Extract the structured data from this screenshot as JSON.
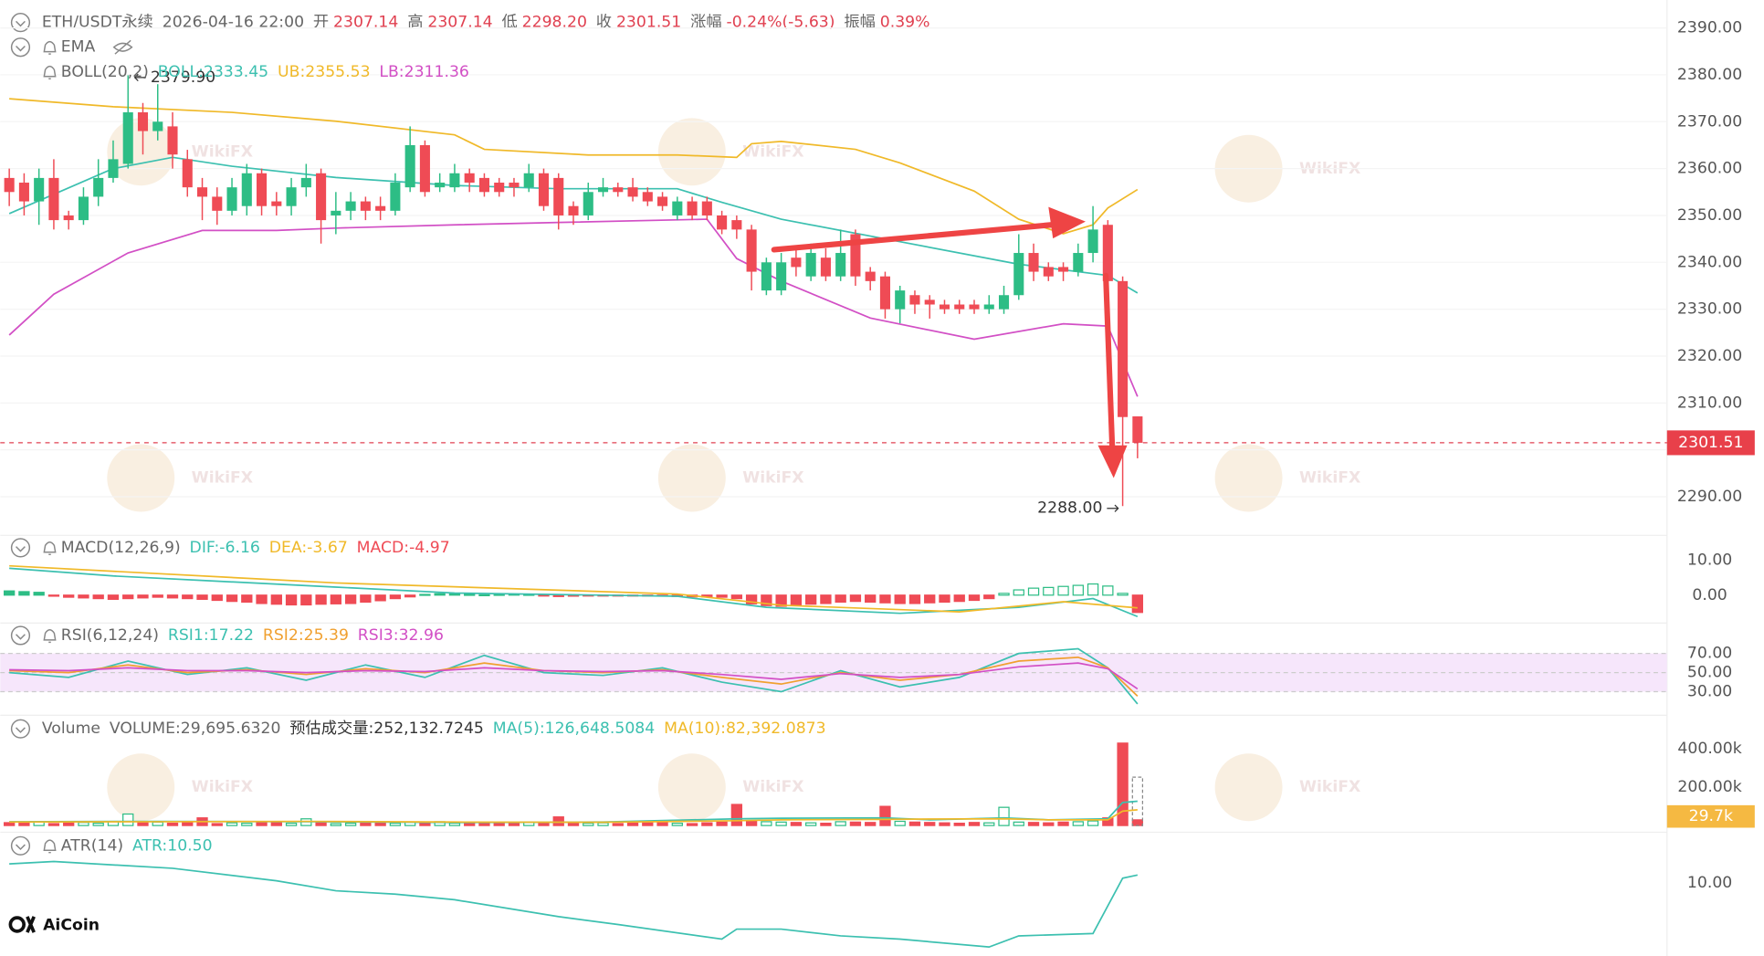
{
  "header": {
    "symbol": "ETH/USDT永续",
    "time": "2026-04-16 22:00",
    "fields": [
      {
        "label": "开",
        "value": "2307.14"
      },
      {
        "label": "高",
        "value": "2307.14"
      },
      {
        "label": "低",
        "value": "2298.20"
      },
      {
        "label": "收",
        "value": "2301.51"
      },
      {
        "label": "涨幅",
        "value": "-0.24%(-5.63)"
      },
      {
        "label": "振幅",
        "value": "0.39%"
      }
    ]
  },
  "watermark": "WikiFX",
  "logo": "AiCoin",
  "chart_data": [
    {
      "type": "candlestick",
      "indicators": [
        "EMA",
        "BOLL(20,2)"
      ],
      "up_color": "#2dbd85",
      "down_color": "#ef4b55",
      "open": [
        2358,
        2357,
        2353,
        2358,
        2350,
        2349,
        2354,
        2358,
        2361,
        2372,
        2368,
        2369,
        2362,
        2356,
        2354,
        2351,
        2352,
        2359,
        2353,
        2352,
        2356,
        2359,
        2350,
        2351,
        2353,
        2352,
        2351,
        2356,
        2365,
        2356,
        2356,
        2359,
        2358,
        2357,
        2357,
        2356,
        2359,
        2358,
        2352,
        2350,
        2355,
        2356,
        2356,
        2355,
        2354,
        2350,
        2353,
        2353,
        2350,
        2349,
        2347,
        2334,
        2334,
        2341,
        2337,
        2341,
        2337,
        2346,
        2338,
        2337,
        2330,
        2333,
        2332,
        2331,
        2331,
        2331,
        2330,
        2330,
        2333,
        2342,
        2339,
        2339,
        2338,
        2342,
        2348,
        2336,
        2307.14
      ],
      "high": [
        2360,
        2359,
        2360,
        2362,
        2351,
        2356,
        2362,
        2366,
        2379.9,
        2374,
        2378,
        2372,
        2364,
        2358,
        2356,
        2358,
        2361,
        2360,
        2355,
        2358,
        2361,
        2360,
        2355,
        2355,
        2354,
        2354,
        2359,
        2369,
        2366,
        2359,
        2361,
        2360,
        2359,
        2358,
        2358,
        2361,
        2360,
        2359,
        2353,
        2357,
        2358,
        2357,
        2358,
        2356,
        2355,
        2354,
        2354,
        2354,
        2351,
        2350,
        2348,
        2341,
        2342,
        2343,
        2344,
        2343,
        2347,
        2347,
        2339,
        2338,
        2335,
        2334,
        2333,
        2332,
        2332,
        2332,
        2333,
        2335,
        2346,
        2344,
        2340,
        2340,
        2344,
        2352,
        2349,
        2337,
        2307.14
      ],
      "low": [
        2352,
        2350,
        2348,
        2347,
        2347,
        2348,
        2352,
        2357,
        2360,
        2363,
        2366,
        2360,
        2354,
        2349,
        2348,
        2350,
        2350,
        2350,
        2350,
        2350,
        2354,
        2344,
        2346,
        2349,
        2349,
        2349,
        2350,
        2355,
        2354,
        2355,
        2355,
        2355,
        2354,
        2354,
        2354,
        2355,
        2351,
        2347,
        2348,
        2349,
        2354,
        2354,
        2353,
        2352,
        2351,
        2349,
        2349,
        2349,
        2346,
        2345,
        2334,
        2333,
        2333,
        2337,
        2336,
        2336,
        2336,
        2335,
        2334,
        2328,
        2327,
        2329,
        2328,
        2329,
        2329,
        2329,
        2329,
        2329,
        2332,
        2336,
        2336,
        2336,
        2337,
        2340,
        2334,
        2288,
        2298.2
      ],
      "close": [
        2355,
        2353,
        2358,
        2349,
        2349,
        2354,
        2358,
        2362,
        2372,
        2368,
        2370,
        2363,
        2356,
        2354,
        2351,
        2356,
        2359,
        2352,
        2352,
        2356,
        2358,
        2349,
        2351,
        2353,
        2351,
        2351,
        2357,
        2365,
        2355,
        2357,
        2359,
        2357,
        2355,
        2355,
        2356,
        2359,
        2352,
        2350,
        2350,
        2355,
        2356,
        2355,
        2354,
        2353,
        2352,
        2353,
        2350,
        2350,
        2347,
        2347,
        2338,
        2340,
        2340,
        2339,
        2342,
        2337,
        2342,
        2337,
        2336,
        2330,
        2334,
        2331,
        2331,
        2330,
        2330,
        2330,
        2331,
        2333,
        2342,
        2338,
        2337,
        2338,
        2342,
        2347,
        2336,
        2307,
        2301.51
      ],
      "ylim": [
        2282,
        2395
      ],
      "yticks": [
        {
          "value": 2290,
          "label": "2290.00"
        },
        {
          "value": 2300,
          "label": "2300.00"
        },
        {
          "value": 2310,
          "label": "2310.00"
        },
        {
          "value": 2320,
          "label": "2320.00"
        },
        {
          "value": 2330,
          "label": "2330.00"
        },
        {
          "value": 2340,
          "label": "2340.00"
        },
        {
          "value": 2350,
          "label": "2350.00"
        },
        {
          "value": 2360,
          "label": "2360.00"
        },
        {
          "value": 2370,
          "label": "2370.00"
        },
        {
          "value": 2380,
          "label": "2380.00"
        },
        {
          "value": 2390,
          "label": "2390.00"
        }
      ],
      "series": [
        {
          "name": "BOLL:2333.45",
          "color": "#3cc0b0",
          "x": [
            0,
            7,
            11,
            15,
            22,
            30,
            37,
            45,
            48,
            52,
            60,
            68,
            74,
            76
          ],
          "values": [
            2350.4,
            2360,
            2362.4,
            2360.5,
            2358.1,
            2356.4,
            2355.7,
            2355.7,
            2352.8,
            2349.2,
            2344.4,
            2339.6,
            2337.2,
            2333.45
          ]
        },
        {
          "name": "UB:2355.53",
          "color": "#f0b929",
          "x": [
            0,
            7,
            15,
            22,
            30,
            32,
            39,
            45,
            49,
            50,
            52,
            57,
            60,
            65,
            68,
            71,
            73,
            74,
            76
          ],
          "values": [
            2374.9,
            2373.2,
            2372,
            2370.1,
            2367.2,
            2364.1,
            2362.9,
            2362.9,
            2362.4,
            2365.3,
            2365.8,
            2364.1,
            2361.2,
            2355.2,
            2349.2,
            2346.1,
            2348,
            2351.6,
            2355.53
          ]
        },
        {
          "name": "LB:2311.36",
          "color": "#d24fc5",
          "x": [
            0,
            3,
            8,
            13,
            18,
            22,
            30,
            37,
            47,
            49,
            52,
            58,
            65,
            71,
            74,
            76
          ],
          "values": [
            2324.5,
            2333.2,
            2342,
            2346.8,
            2346.8,
            2347.3,
            2348,
            2348.5,
            2349.2,
            2340.8,
            2336,
            2328.1,
            2323.6,
            2326.9,
            2326.4,
            2311.36
          ]
        }
      ],
      "last_price": 2301.51,
      "annotations": [
        {
          "value": 2379.9,
          "label": "2379.90"
        },
        {
          "value": 2288,
          "label": "2288.00"
        }
      ]
    },
    {
      "type": "macd",
      "title": "MACD(12,26,9)",
      "ylim": [
        -7.7,
        16.5
      ],
      "yticks": [
        {
          "value": 10,
          "label": "10.00"
        },
        {
          "value": 0,
          "label": "0.00"
        }
      ],
      "histogram": {
        "name": "MACD:-4.97",
        "color": "#ef4b55",
        "values": [
          1.2,
          1.0,
          0.8,
          -0.3,
          -0.6,
          -0.8,
          -1.0,
          -1.2,
          -1.0,
          -0.8,
          -0.6,
          -0.8,
          -1.0,
          -1.2,
          -1.5,
          -1.8,
          -2.0,
          -2.4,
          -2.6,
          -2.8,
          -2.8,
          -2.6,
          -2.5,
          -2.4,
          -2.0,
          -1.6,
          -1.0,
          -0.5,
          0.2,
          0.4,
          0.3,
          0.2,
          0.1,
          0.2,
          0.3,
          0.2,
          -0.2,
          -0.4,
          -0.3,
          -0.2,
          -0.1,
          -0.1,
          -0.2,
          -0.2,
          -0.3,
          -0.4,
          -0.5,
          -0.5,
          -0.6,
          -1.0,
          -2.5,
          -3.0,
          -3.2,
          -3.0,
          -2.6,
          -2.4,
          -2.0,
          -1.8,
          -2.0,
          -2.2,
          -2.4,
          -2.4,
          -2.2,
          -2.0,
          -1.8,
          -1.5,
          -1.0,
          0.5,
          1.5,
          2.0,
          2.2,
          2.5,
          2.8,
          3.2,
          2.6,
          0.5,
          -4.97
        ]
      },
      "series": [
        {
          "name": "DIF:-6.16",
          "color": "#3cc0b0",
          "x": [
            0,
            7,
            22,
            30,
            45,
            51,
            60,
            68,
            73,
            76
          ],
          "values": [
            7.7,
            5.5,
            2.3,
            0.6,
            -0.3,
            -3.5,
            -5.2,
            -3.5,
            -1,
            -6.16
          ]
        },
        {
          "name": "DEA:-3.67",
          "color": "#f0b929",
          "x": [
            0,
            22,
            45,
            52,
            64,
            71,
            76
          ],
          "values": [
            8.4,
            3.5,
            0.3,
            -2.9,
            -4.8,
            -1.9,
            -3.67
          ]
        }
      ]
    },
    {
      "type": "rsi",
      "title": "RSI(6,12,24)",
      "ylim": [
        0,
        100
      ],
      "yticks": [
        {
          "value": 70,
          "label": "70.00"
        },
        {
          "value": 50,
          "label": "50.00"
        },
        {
          "value": 30,
          "label": "30.00"
        }
      ],
      "series": [
        {
          "name": "RSI1:17.22",
          "color": "#3cc0b0",
          "x": [
            0,
            4,
            8,
            12,
            16,
            20,
            24,
            28,
            32,
            36,
            40,
            44,
            48,
            52,
            56,
            60,
            64,
            68,
            72,
            74,
            76
          ],
          "values": [
            50,
            45,
            62,
            48,
            55,
            42,
            58,
            45,
            68,
            50,
            47,
            55,
            40,
            30,
            52,
            35,
            45,
            70,
            75,
            55,
            17.22
          ]
        },
        {
          "name": "RSI2:25.39",
          "color": "#f0a030",
          "x": [
            0,
            4,
            8,
            12,
            16,
            20,
            24,
            28,
            32,
            36,
            40,
            44,
            48,
            52,
            56,
            60,
            64,
            68,
            72,
            74,
            76
          ],
          "values": [
            52,
            50,
            58,
            50,
            53,
            48,
            54,
            50,
            60,
            52,
            50,
            53,
            45,
            38,
            50,
            42,
            48,
            62,
            66,
            55,
            25.39
          ]
        },
        {
          "name": "RSI3:32.96",
          "color": "#d24fc5",
          "x": [
            0,
            4,
            8,
            12,
            16,
            20,
            24,
            28,
            32,
            36,
            40,
            44,
            48,
            52,
            56,
            60,
            64,
            68,
            72,
            74,
            76
          ],
          "values": [
            53,
            52,
            55,
            52,
            52,
            50,
            52,
            51,
            55,
            52,
            51,
            52,
            48,
            43,
            49,
            45,
            48,
            56,
            60,
            54,
            32.96
          ]
        }
      ]
    },
    {
      "type": "volume",
      "title": "Volume",
      "legend": [
        "VOLUME:29,695.6320",
        "预估成交量:252,132.7245"
      ],
      "values": [
        15000,
        12000,
        18000,
        10000,
        14000,
        16000,
        12000,
        20000,
        60000,
        14000,
        18000,
        12000,
        16000,
        40000,
        10000,
        14000,
        12000,
        18000,
        16000,
        12000,
        35000,
        14000,
        10000,
        12000,
        16000,
        14000,
        12000,
        18000,
        14000,
        20000,
        12000,
        10000,
        14000,
        16000,
        12000,
        18000,
        14000,
        45000,
        16000,
        12000,
        14000,
        10000,
        12000,
        14000,
        16000,
        12000,
        10000,
        14000,
        18000,
        110000,
        24000,
        20000,
        18000,
        16000,
        14000,
        12000,
        20000,
        18000,
        16000,
        100000,
        22000,
        18000,
        16000,
        14000,
        12000,
        16000,
        14000,
        95000,
        18000,
        16000,
        14000,
        18000,
        20000,
        24000,
        40000,
        430000,
        29695.632
      ],
      "estimated": 252132.7245,
      "current_label": "29.7k",
      "ylim": [
        0,
        440000
      ],
      "yticks": [
        {
          "value": 400000,
          "label": "400.00k"
        },
        {
          "value": 200000,
          "label": "200.00k"
        }
      ],
      "series": [
        {
          "name": "MA(5):126,648.5084",
          "color": "#3cc0b0",
          "x": [
            0,
            10,
            20,
            30,
            40,
            49,
            52,
            59,
            62,
            67,
            70,
            74,
            75,
            76
          ],
          "values": [
            20000,
            22000,
            20000,
            16000,
            18000,
            35000,
            38000,
            40000,
            30000,
            40000,
            30000,
            35000,
            120000,
            126648.5084
          ]
        },
        {
          "name": "MA(10):82,392.0873",
          "color": "#f0b929",
          "x": [
            0,
            10,
            20,
            30,
            40,
            49,
            52,
            59,
            62,
            67,
            70,
            74,
            75,
            76
          ],
          "values": [
            18000,
            20000,
            22000,
            18000,
            17000,
            25000,
            30000,
            32000,
            34000,
            35000,
            30000,
            30000,
            75000,
            82392.0873
          ]
        }
      ]
    },
    {
      "type": "line",
      "title": "ATR(14)",
      "ylim": [
        5.36,
        12.86
      ],
      "yticks": [
        {
          "value": 10,
          "label": "10.00"
        }
      ],
      "series": [
        {
          "name": "ATR:10.50",
          "color": "#3cc0b0",
          "x": [
            0,
            3,
            11,
            18,
            22,
            26,
            30,
            37,
            41,
            48,
            49,
            52,
            56,
            60,
            66,
            68,
            73,
            75,
            76
          ],
          "values": [
            11.21,
            11.36,
            10.93,
            10.14,
            9.5,
            9.29,
            8.93,
            7.86,
            7.36,
            6.43,
            7.07,
            7.07,
            6.64,
            6.43,
            5.93,
            6.64,
            6.79,
            10.3,
            10.5
          ]
        }
      ]
    }
  ]
}
